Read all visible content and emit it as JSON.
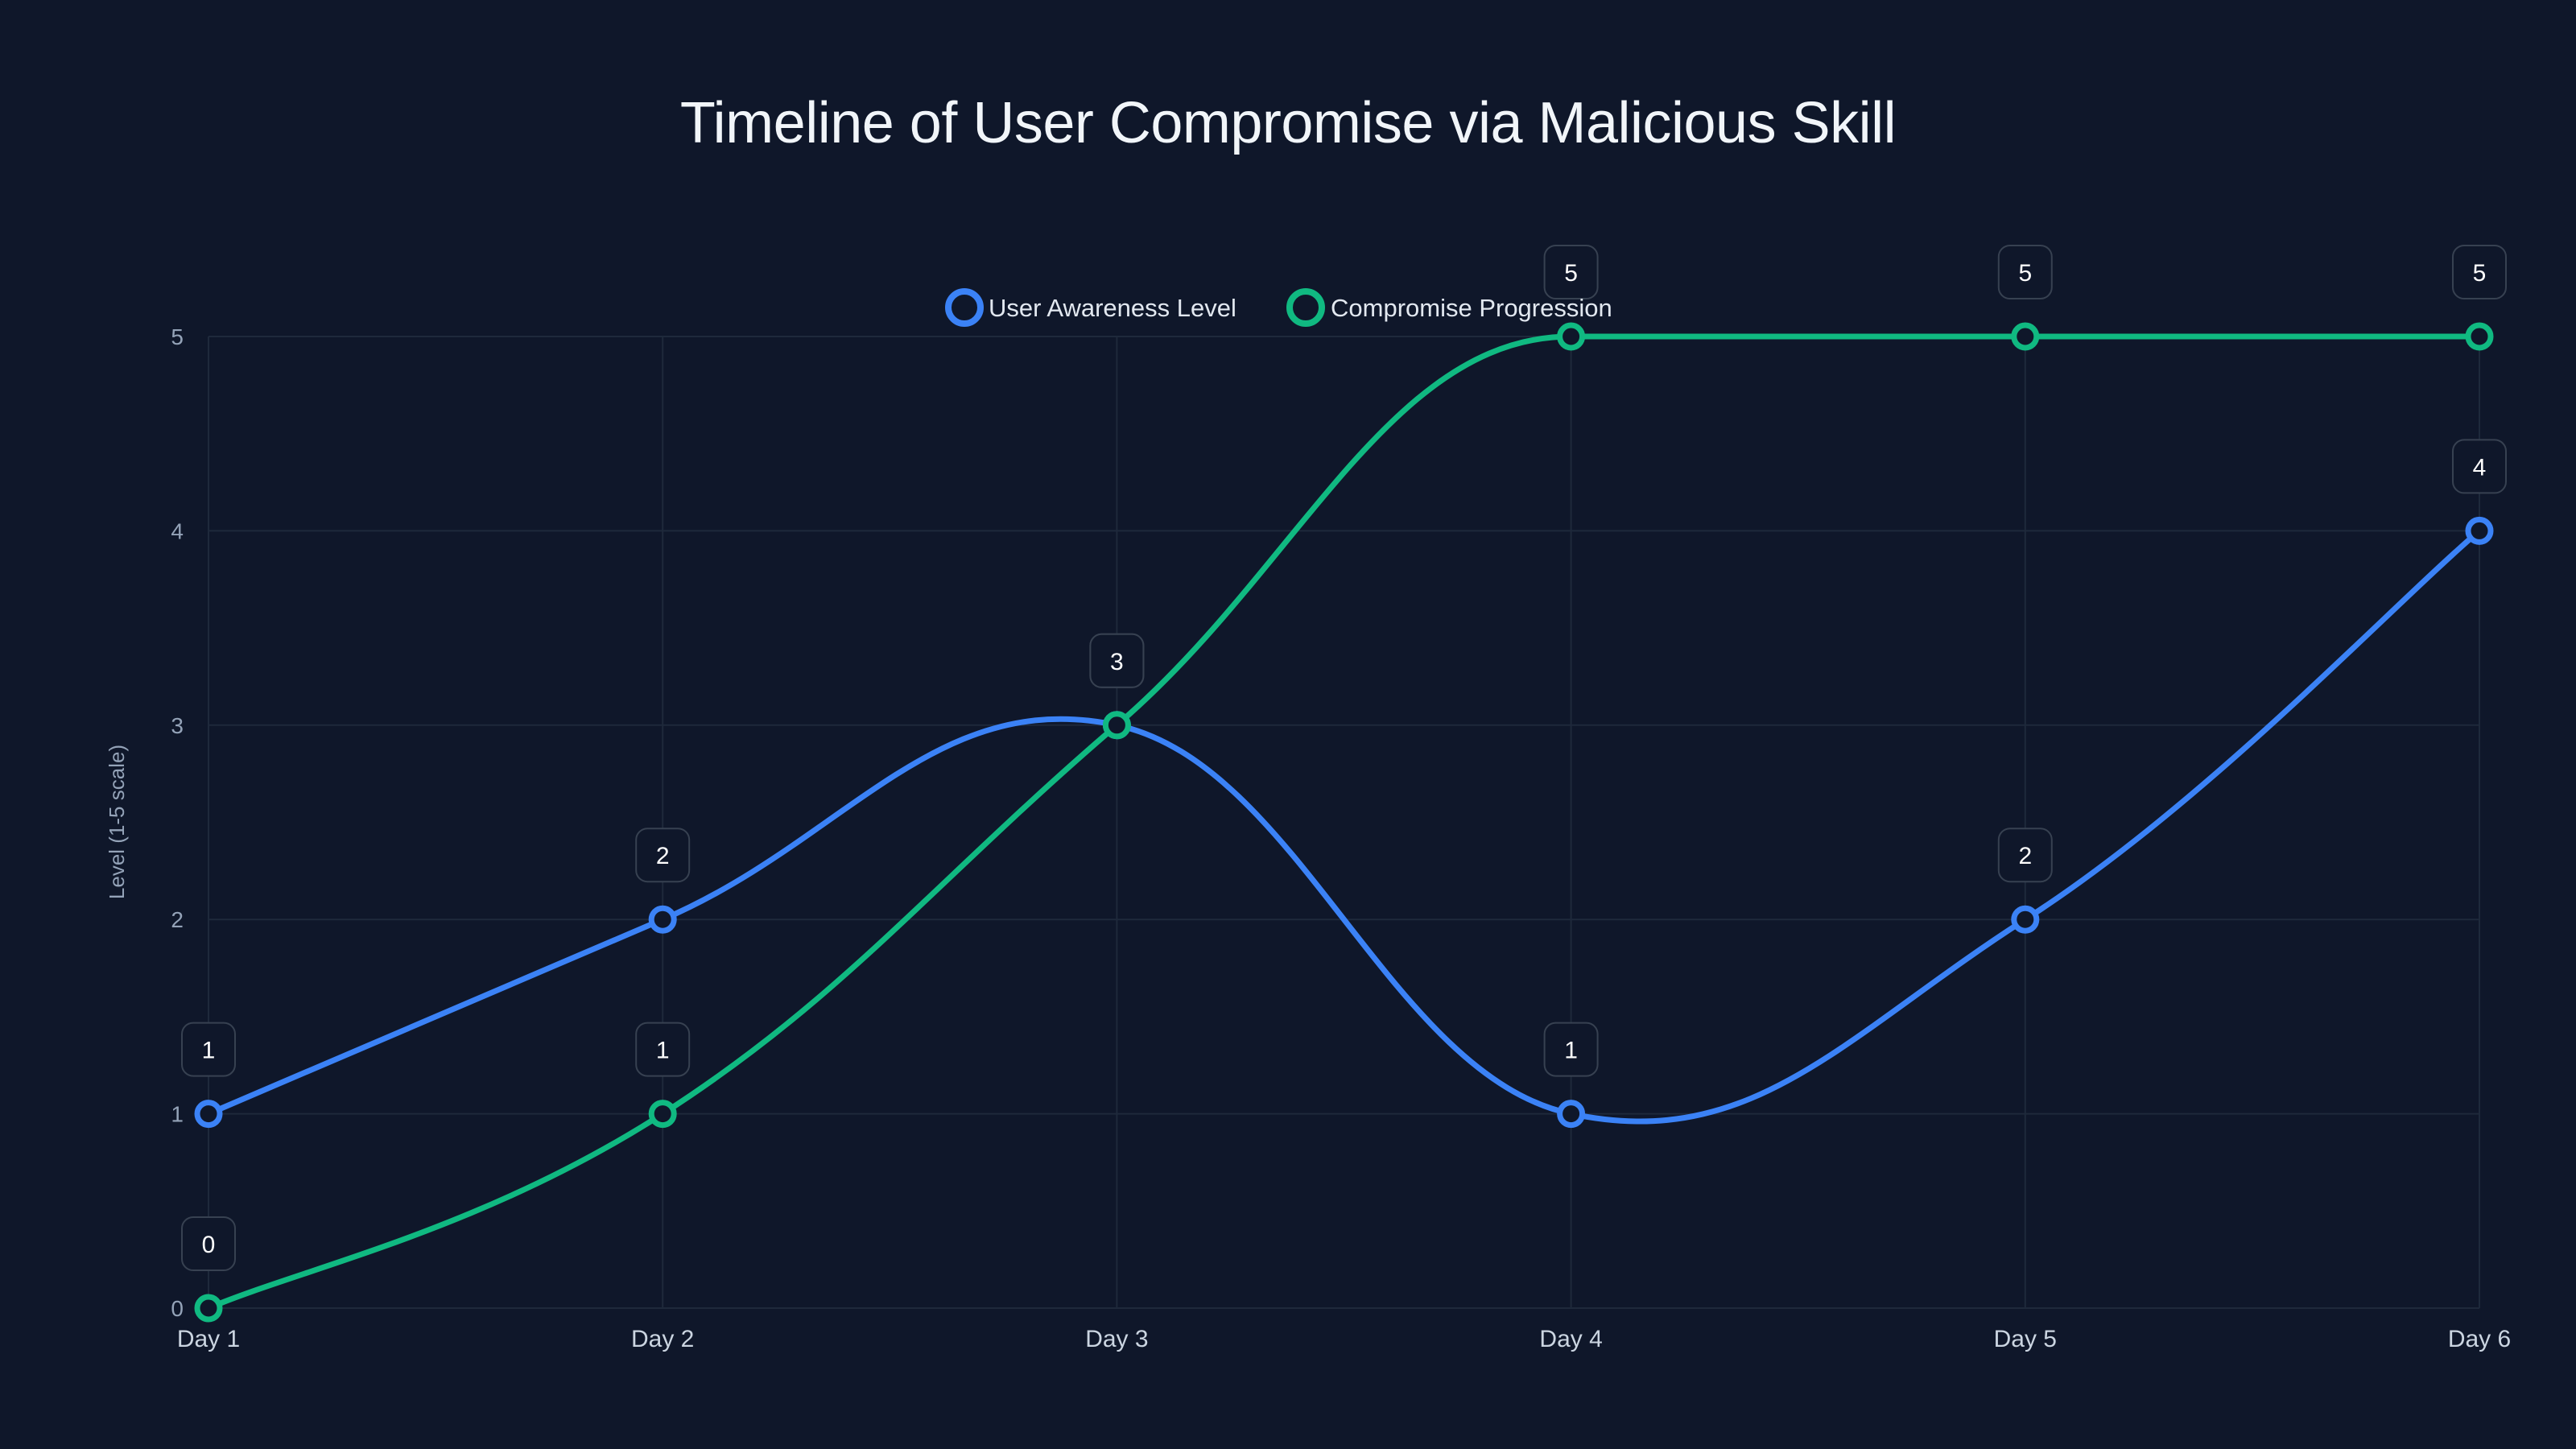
{
  "chart_data": {
    "type": "line",
    "title": "Timeline of User Compromise via Malicious Skill",
    "xlabel": "",
    "ylabel": "Level (1-5 scale)",
    "categories": [
      "Day 1",
      "Day 2",
      "Day 3",
      "Day 4",
      "Day 5",
      "Day 6"
    ],
    "ylim": [
      0,
      5
    ],
    "yticks": [
      0,
      1,
      2,
      3,
      4,
      5
    ],
    "grid": true,
    "legend_position": "top-center",
    "curve": "smooth",
    "series": [
      {
        "name": "User Awareness Level",
        "color": "#3b82f6",
        "values": [
          1,
          2,
          3,
          1,
          2,
          4
        ]
      },
      {
        "name": "Compromise Progression",
        "color": "#10b981",
        "values": [
          0,
          1,
          3,
          5,
          5,
          5
        ]
      }
    ],
    "data_labels": true
  },
  "colors": {
    "background": "#0f172a",
    "grid": "#1e293b",
    "label_box_border": "#374151"
  }
}
